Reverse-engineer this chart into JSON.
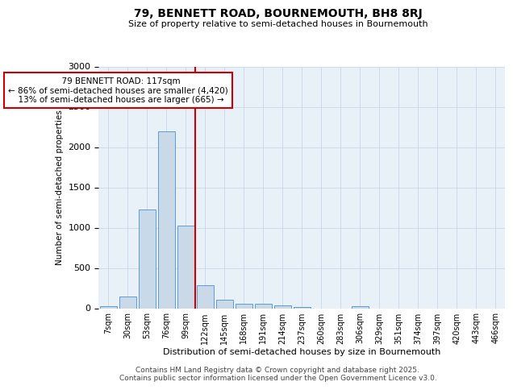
{
  "title": "79, BENNETT ROAD, BOURNEMOUTH, BH8 8RJ",
  "subtitle": "Size of property relative to semi-detached houses in Bournemouth",
  "xlabel": "Distribution of semi-detached houses by size in Bournemouth",
  "ylabel": "Number of semi-detached properties",
  "footer_line1": "Contains HM Land Registry data © Crown copyright and database right 2025.",
  "footer_line2": "Contains public sector information licensed under the Open Government Licence v3.0.",
  "bin_labels": [
    "7sqm",
    "30sqm",
    "53sqm",
    "76sqm",
    "99sqm",
    "122sqm",
    "145sqm",
    "168sqm",
    "191sqm",
    "214sqm",
    "237sqm",
    "260sqm",
    "283sqm",
    "306sqm",
    "329sqm",
    "351sqm",
    "374sqm",
    "397sqm",
    "420sqm",
    "443sqm",
    "466sqm"
  ],
  "bar_values": [
    30,
    150,
    1230,
    2200,
    1030,
    290,
    110,
    55,
    60,
    35,
    20,
    0,
    0,
    30,
    0,
    0,
    0,
    0,
    0,
    0,
    0
  ],
  "bar_color": "#c9d9e8",
  "bar_edge_color": "#5b9bd5",
  "annotation_text_line1": "79 BENNETT ROAD: 117sqm",
  "annotation_text_line2": "← 86% of semi-detached houses are smaller (4,420)",
  "annotation_text_line3": "13% of semi-detached houses are larger (665) →",
  "annotation_box_color": "#ffffff",
  "annotation_border_color": "#cc0000",
  "vline_color": "#cc0000",
  "ylim": [
    0,
    3000
  ],
  "yticks": [
    0,
    500,
    1000,
    1500,
    2000,
    2500,
    3000
  ],
  "grid_color": "#c8d8e8",
  "bg_color": "#e8f0f8",
  "fig_bg_color": "#ffffff",
  "vline_bin_index": 5,
  "title_fontsize": 10,
  "subtitle_fontsize": 8
}
